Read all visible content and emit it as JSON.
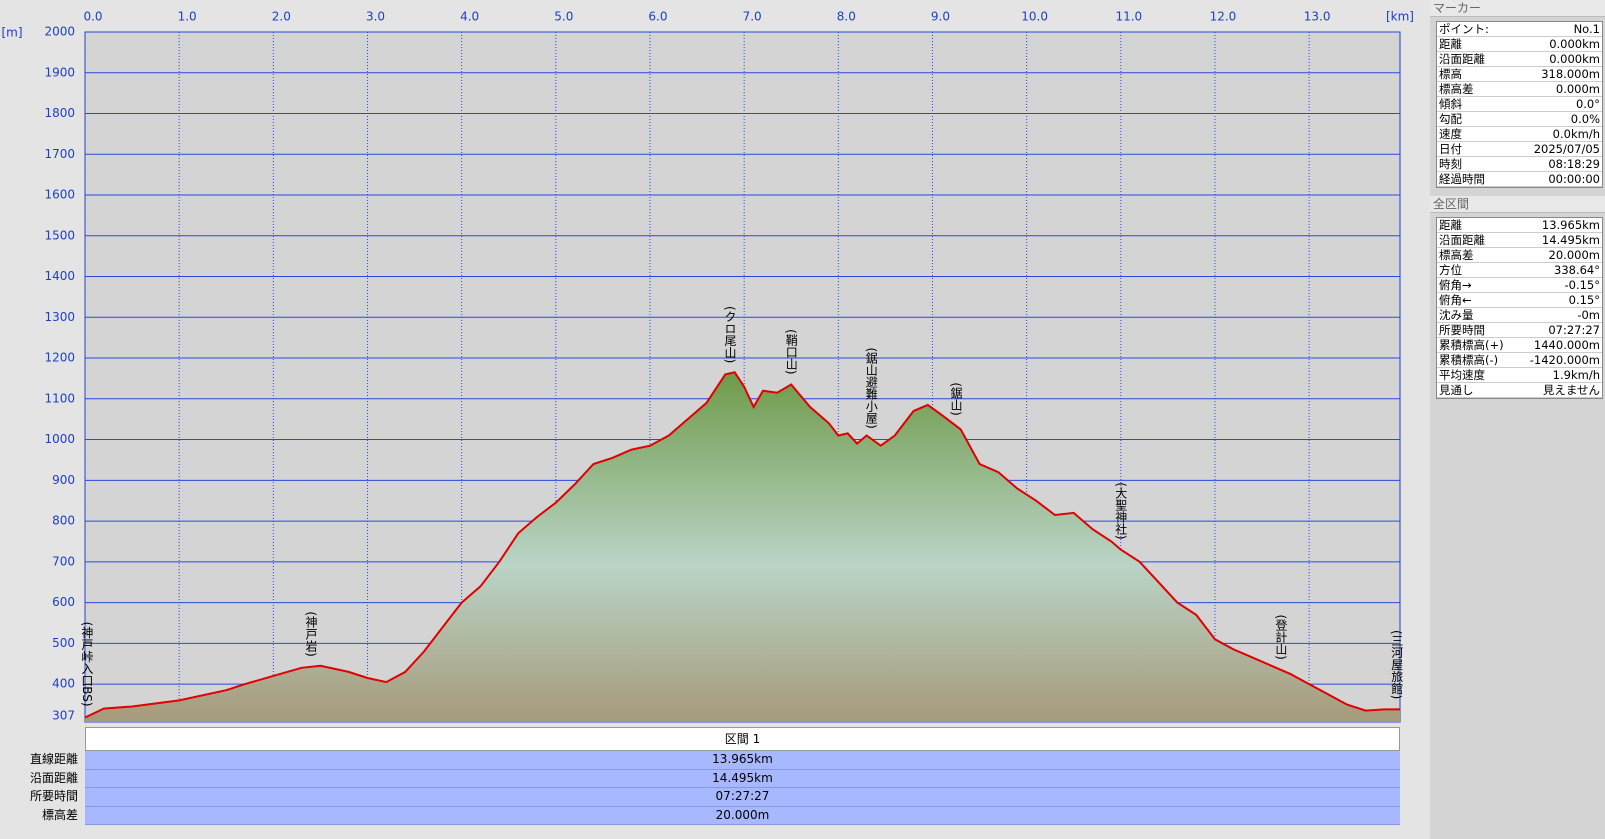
{
  "chart_data": {
    "type": "area",
    "x": [
      0,
      0.2,
      0.5,
      1.0,
      1.5,
      1.7,
      2.0,
      2.3,
      2.5,
      2.8,
      3.0,
      3.2,
      3.4,
      3.6,
      3.8,
      4.0,
      4.2,
      4.4,
      4.6,
      4.8,
      5.0,
      5.2,
      5.4,
      5.6,
      5.8,
      6.0,
      6.2,
      6.4,
      6.6,
      6.8,
      6.9,
      7.0,
      7.1,
      7.2,
      7.35,
      7.5,
      7.7,
      7.9,
      8.0,
      8.1,
      8.2,
      8.3,
      8.45,
      8.6,
      8.8,
      8.95,
      9.1,
      9.3,
      9.5,
      9.7,
      9.9,
      10.1,
      10.3,
      10.5,
      10.7,
      10.9,
      11.0,
      11.2,
      11.4,
      11.6,
      11.8,
      12.0,
      12.2,
      12.4,
      12.6,
      12.8,
      13.0,
      13.2,
      13.4,
      13.6,
      13.8,
      13.965
    ],
    "values": [
      318,
      340,
      345,
      360,
      385,
      400,
      420,
      440,
      445,
      430,
      415,
      405,
      430,
      480,
      540,
      600,
      640,
      700,
      770,
      810,
      845,
      890,
      940,
      955,
      975,
      985,
      1010,
      1050,
      1090,
      1160,
      1165,
      1130,
      1080,
      1120,
      1115,
      1135,
      1080,
      1040,
      1010,
      1015,
      990,
      1010,
      985,
      1010,
      1070,
      1085,
      1060,
      1025,
      940,
      920,
      880,
      850,
      815,
      820,
      780,
      750,
      730,
      700,
      650,
      600,
      570,
      510,
      485,
      465,
      445,
      425,
      400,
      375,
      350,
      335,
      338,
      338
    ],
    "color": "#e00000",
    "xlim": [
      0,
      13.965
    ],
    "ylim": [
      307,
      2000
    ],
    "xticks": [
      {
        "value": 0,
        "label": "0.0"
      },
      {
        "value": 1,
        "label": "1.0"
      },
      {
        "value": 2,
        "label": "2.0"
      },
      {
        "value": 3,
        "label": "3.0"
      },
      {
        "value": 4,
        "label": "4.0"
      },
      {
        "value": 5,
        "label": "5.0"
      },
      {
        "value": 6,
        "label": "6.0"
      },
      {
        "value": 7,
        "label": "7.0"
      },
      {
        "value": 8,
        "label": "8.0"
      },
      {
        "value": 9,
        "label": "9.0"
      },
      {
        "value": 10,
        "label": "10.0"
      },
      {
        "value": 11,
        "label": "11.0"
      },
      {
        "value": 12,
        "label": "12.0"
      },
      {
        "value": 13,
        "label": "13.0"
      }
    ],
    "yticks": [
      307,
      400,
      500,
      600,
      700,
      800,
      900,
      1000,
      1100,
      1200,
      1300,
      1400,
      1500,
      1600,
      1700,
      1800,
      1900,
      2000
    ],
    "xlabel": "[km]",
    "ylabel": "[m]",
    "grid": true,
    "annotations": [
      {
        "text": "(神戸峠入口BS)",
        "x": 0.02
      },
      {
        "text": "(神戸岩)",
        "x": 2.4
      },
      {
        "text": "(クロ尾山)",
        "x": 6.85
      },
      {
        "text": "(鞘口山)",
        "x": 7.5
      },
      {
        "text": "(鋸山避難小屋)",
        "x": 8.35
      },
      {
        "text": "(鋸山)",
        "x": 9.25
      },
      {
        "text": "(大聖神社)",
        "x": 11.0
      },
      {
        "text": "(登計山)",
        "x": 12.7
      },
      {
        "text": "(三河屋旅館)",
        "x": 13.93
      }
    ]
  },
  "marker_panel": {
    "title": "マーカー",
    "rows": [
      [
        "ポイント:",
        "No.1"
      ],
      [
        "距離",
        "0.000km"
      ],
      [
        "沿面距離",
        "0.000km"
      ],
      [
        "標高",
        "318.000m"
      ],
      [
        "標高差",
        "0.000m"
      ],
      [
        "傾斜",
        "0.0°"
      ],
      [
        "勾配",
        "0.0%"
      ],
      [
        "速度",
        "0.0km/h"
      ],
      [
        "日付",
        "2025/07/05"
      ],
      [
        "時刻",
        "08:18:29"
      ],
      [
        "経過時間",
        "00:00:00"
      ]
    ]
  },
  "section_panel": {
    "title": "全区間",
    "rows": [
      [
        "距離",
        "13.965km"
      ],
      [
        "沿面距離",
        "14.495km"
      ],
      [
        "標高差",
        "20.000m"
      ],
      [
        "方位",
        "338.64°"
      ],
      [
        "俯角→",
        "-0.15°"
      ],
      [
        "俯角←",
        "0.15°"
      ],
      [
        "沈み量",
        "-0m"
      ],
      [
        "所要時間",
        "07:27:27"
      ],
      [
        "累積標高(+)",
        "1440.000m"
      ],
      [
        "累積標高(-)",
        "-1420.000m"
      ],
      [
        "平均速度",
        "1.9km/h"
      ],
      [
        "見通し",
        "見えません"
      ]
    ]
  },
  "interval_table": {
    "header": "区間 1",
    "rows": [
      [
        "直線距離",
        "13.965km"
      ],
      [
        "沿面距離",
        "14.495km"
      ],
      [
        "所要時間",
        "07:27:27"
      ],
      [
        "標高差",
        "20.000m"
      ]
    ]
  }
}
